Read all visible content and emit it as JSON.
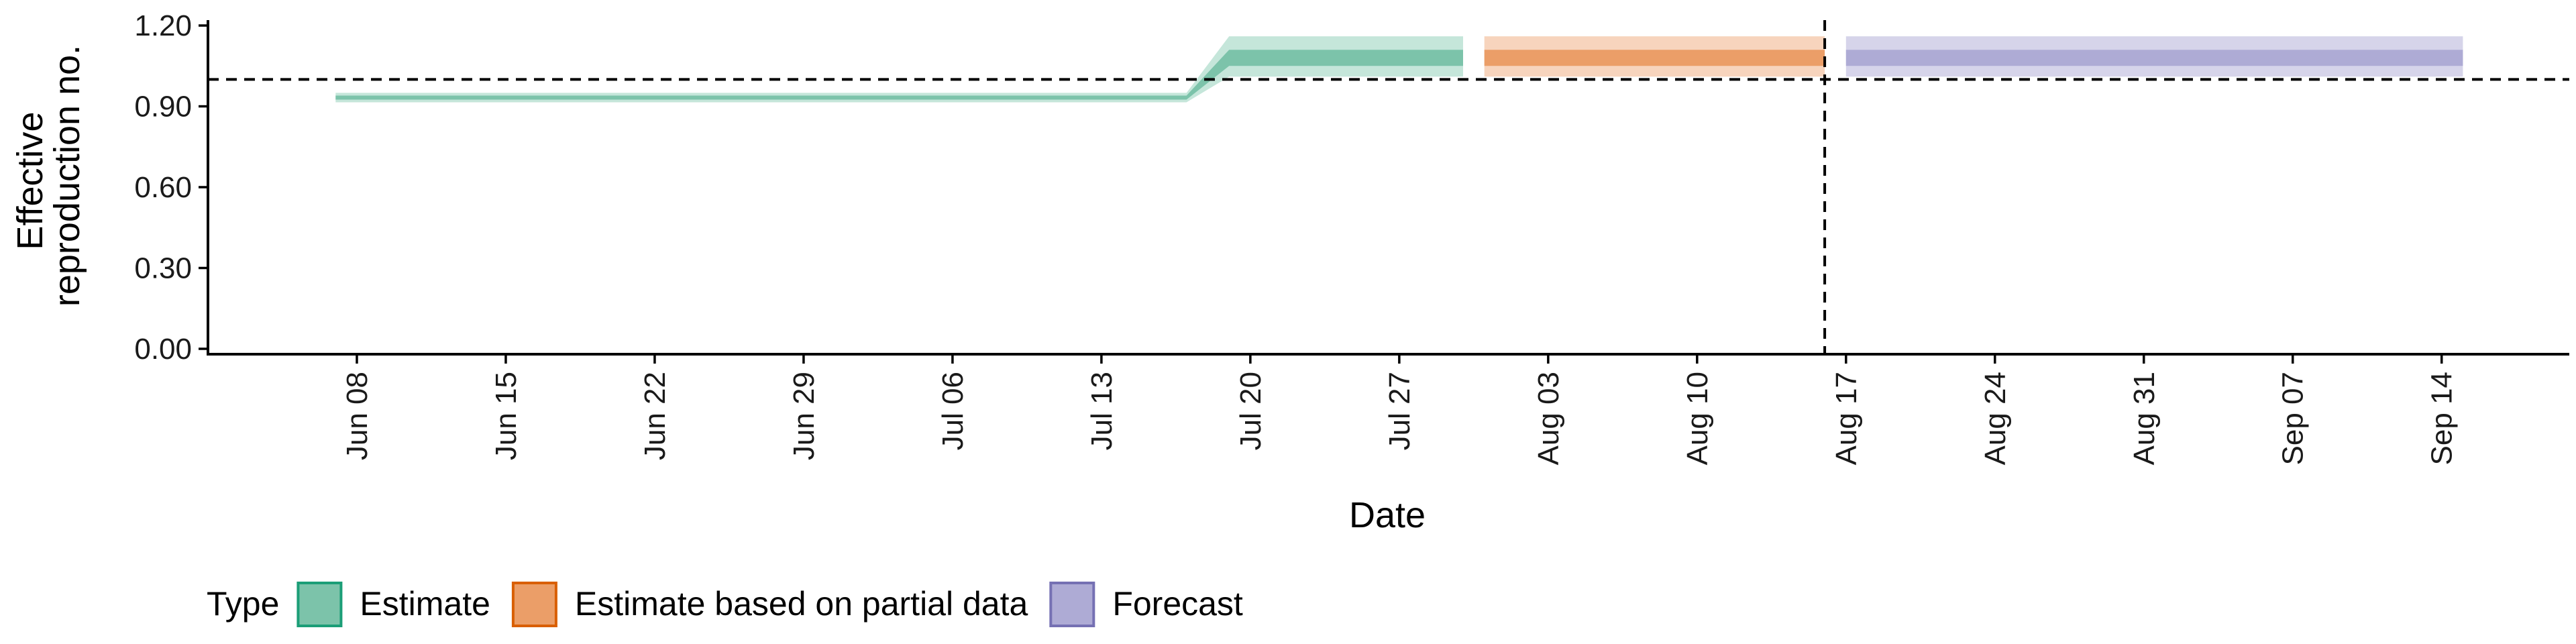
{
  "chart_data": {
    "type": "area",
    "title": "",
    "xlabel": "Date",
    "ylabel_lines": [
      "Effective",
      "reproduction no."
    ],
    "x_type": "date",
    "xlim": [
      "2020-06-01",
      "2020-09-20"
    ],
    "ylim": [
      -0.02,
      1.22
    ],
    "yticks": [
      0.0,
      0.3,
      0.6,
      0.9,
      1.2
    ],
    "ytick_labels": [
      "0.00",
      "0.30",
      "0.60",
      "0.90",
      "1.20"
    ],
    "xticks": [
      "2020-06-08",
      "2020-06-15",
      "2020-06-22",
      "2020-06-29",
      "2020-07-06",
      "2020-07-13",
      "2020-07-20",
      "2020-07-27",
      "2020-08-03",
      "2020-08-10",
      "2020-08-17",
      "2020-08-24",
      "2020-08-31",
      "2020-09-07",
      "2020-09-14"
    ],
    "xtick_labels": [
      "Jun 08",
      "Jun 15",
      "Jun 22",
      "Jun 29",
      "Jul 06",
      "Jul 13",
      "Jul 20",
      "Jul 27",
      "Aug 03",
      "Aug 10",
      "Aug 17",
      "Aug 24",
      "Aug 31",
      "Sep 07",
      "Sep 14"
    ],
    "reference_lines": {
      "horizontal_y": 1.0,
      "vertical_x": "2020-08-16"
    },
    "grid": false,
    "legend": {
      "title": "Type",
      "position": "bottom",
      "entries": [
        "Estimate",
        "Estimate based on partial data",
        "Forecast"
      ]
    },
    "series": [
      {
        "name": "Estimate",
        "color": "#1b9e77",
        "outer_fill": "#c5e6da",
        "inner_fill": "#7cc3aa",
        "points": [
          {
            "x": "2020-06-07",
            "outer": [
              0.915,
              0.95
            ],
            "inner": [
              0.925,
              0.94
            ]
          },
          {
            "x": "2020-07-17",
            "outer": [
              0.915,
              0.95
            ],
            "inner": [
              0.925,
              0.94
            ]
          },
          {
            "x": "2020-07-19",
            "outer": [
              1.01,
              1.16
            ],
            "inner": [
              1.05,
              1.11
            ]
          },
          {
            "x": "2020-07-30",
            "outer": [
              1.01,
              1.16
            ],
            "inner": [
              1.05,
              1.11
            ]
          }
        ]
      },
      {
        "name": "Estimate based on partial data",
        "color": "#d95f02",
        "outer_fill": "#f7d4bd",
        "inner_fill": "#eb9e68",
        "points": [
          {
            "x": "2020-07-31",
            "outer": [
              1.01,
              1.16
            ],
            "inner": [
              1.05,
              1.11
            ]
          },
          {
            "x": "2020-08-16",
            "outer": [
              1.01,
              1.16
            ],
            "inner": [
              1.05,
              1.11
            ]
          }
        ]
      },
      {
        "name": "Forecast",
        "color": "#7570b3",
        "outer_fill": "#d6d4ea",
        "inner_fill": "#aeabd5",
        "points": [
          {
            "x": "2020-08-17",
            "outer": [
              1.01,
              1.16
            ],
            "inner": [
              1.05,
              1.11
            ]
          },
          {
            "x": "2020-09-15",
            "outer": [
              1.01,
              1.16
            ],
            "inner": [
              1.05,
              1.11
            ]
          }
        ]
      }
    ]
  }
}
